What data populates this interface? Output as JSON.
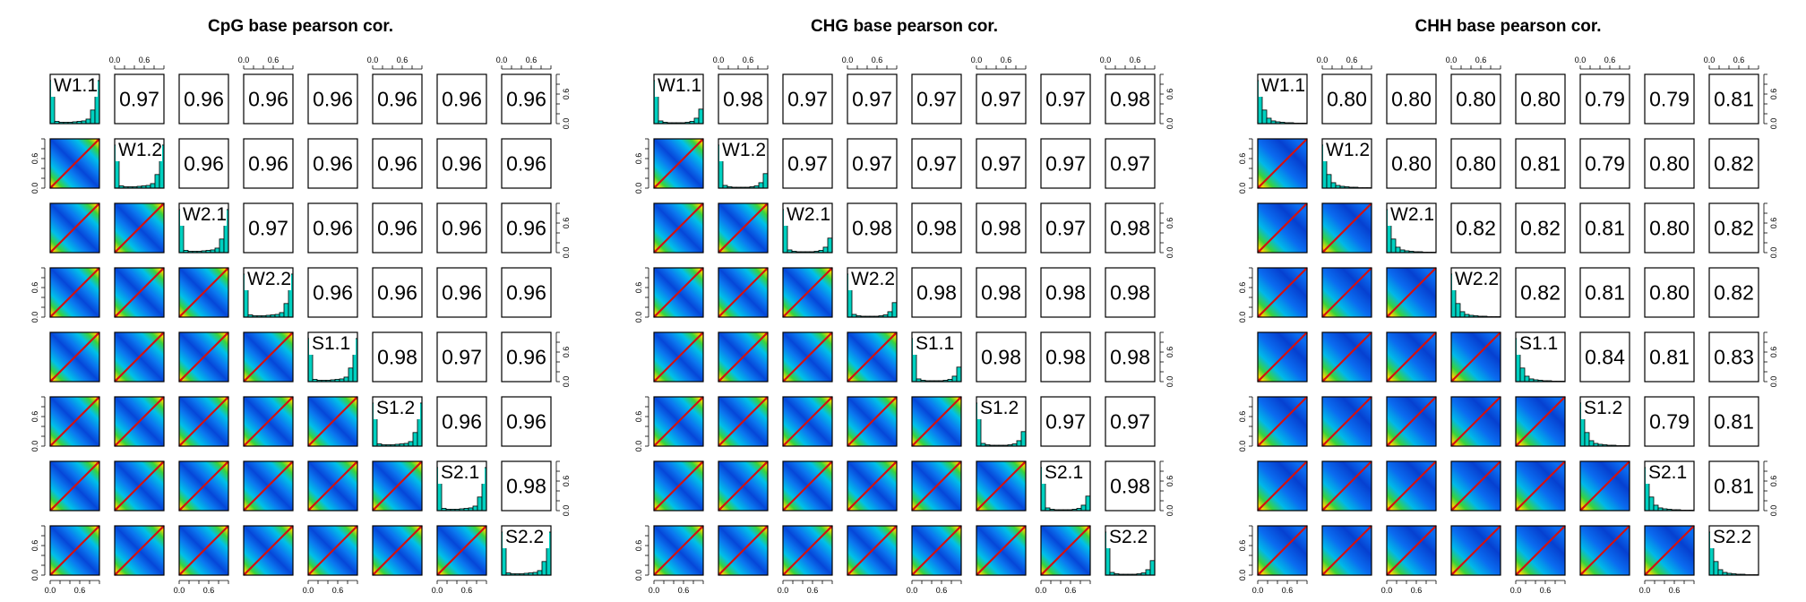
{
  "chart_data": [
    {
      "type": "scatter-matrix",
      "title": "CpG base pearson cor.",
      "variables": [
        "W1.1",
        "W1.2",
        "W2.1",
        "W2.2",
        "S1.1",
        "S1.2",
        "S2.1",
        "S2.2"
      ],
      "correlations": [
        [
          null,
          0.97,
          0.96,
          0.96,
          0.96,
          0.96,
          0.96,
          0.96
        ],
        [
          null,
          null,
          0.96,
          0.96,
          0.96,
          0.96,
          0.96,
          0.96
        ],
        [
          null,
          null,
          null,
          0.97,
          0.96,
          0.96,
          0.96,
          0.96
        ],
        [
          null,
          null,
          null,
          null,
          0.96,
          0.96,
          0.96,
          0.96
        ],
        [
          null,
          null,
          null,
          null,
          null,
          0.98,
          0.97,
          0.96
        ],
        [
          null,
          null,
          null,
          null,
          null,
          null,
          0.96,
          0.96
        ],
        [
          null,
          null,
          null,
          null,
          null,
          null,
          null,
          0.98
        ],
        [
          null,
          null,
          null,
          null,
          null,
          null,
          null,
          null
        ]
      ],
      "correlation_labels": [
        [
          null,
          "0.97",
          "0.96",
          "0.96",
          "0.96",
          "0.96",
          "0.96",
          "0.96"
        ],
        [
          null,
          null,
          "0.96",
          "0.96",
          "0.96",
          "0.96",
          "0.96",
          "0.96"
        ],
        [
          null,
          null,
          null,
          "0.97",
          "0.96",
          "0.96",
          "0.96",
          "0.96"
        ],
        [
          null,
          null,
          null,
          null,
          "0.96",
          "0.96",
          "0.96",
          "0.96"
        ],
        [
          null,
          null,
          null,
          null,
          null,
          "0.98",
          "0.97",
          "0.96"
        ],
        [
          null,
          null,
          null,
          null,
          null,
          null,
          "0.96",
          "0.96"
        ],
        [
          null,
          null,
          null,
          null,
          null,
          null,
          null,
          "0.98"
        ],
        [
          null,
          null,
          null,
          null,
          null,
          null,
          null,
          null
        ]
      ],
      "histogram": [
        0.95,
        0.05,
        0.03,
        0.03,
        0.03,
        0.04,
        0.05,
        0.06,
        0.1,
        0.3,
        0.95
      ],
      "tick_labels": [
        "0.0",
        "0.6"
      ],
      "axis_range": [
        0,
        1
      ]
    },
    {
      "type": "scatter-matrix",
      "title": "CHG base pearson cor.",
      "variables": [
        "W1.1",
        "W1.2",
        "W2.1",
        "W2.2",
        "S1.1",
        "S1.2",
        "S2.1",
        "S2.2"
      ],
      "correlations": [
        [
          null,
          0.98,
          0.97,
          0.97,
          0.97,
          0.97,
          0.97,
          0.98
        ],
        [
          null,
          null,
          0.97,
          0.97,
          0.97,
          0.97,
          0.97,
          0.97
        ],
        [
          null,
          null,
          null,
          0.98,
          0.98,
          0.98,
          0.97,
          0.98
        ],
        [
          null,
          null,
          null,
          null,
          0.98,
          0.98,
          0.98,
          0.98
        ],
        [
          null,
          null,
          null,
          null,
          null,
          0.98,
          0.98,
          0.98
        ],
        [
          null,
          null,
          null,
          null,
          null,
          null,
          0.97,
          0.97
        ],
        [
          null,
          null,
          null,
          null,
          null,
          null,
          null,
          0.98
        ],
        [
          null,
          null,
          null,
          null,
          null,
          null,
          null,
          null
        ]
      ],
      "correlation_labels": [
        [
          null,
          "0.98",
          "0.97",
          "0.97",
          "0.97",
          "0.97",
          "0.97",
          "0.98"
        ],
        [
          null,
          null,
          "0.97",
          "0.97",
          "0.97",
          "0.97",
          "0.97",
          "0.97"
        ],
        [
          null,
          null,
          null,
          "0.98",
          "0.98",
          "0.98",
          "0.97",
          "0.98"
        ],
        [
          null,
          null,
          null,
          null,
          "0.98",
          "0.98",
          "0.98",
          "0.98"
        ],
        [
          null,
          null,
          null,
          null,
          null,
          "0.98",
          "0.98",
          "0.98"
        ],
        [
          null,
          null,
          null,
          null,
          null,
          null,
          "0.97",
          "0.97"
        ],
        [
          null,
          null,
          null,
          null,
          null,
          null,
          null,
          "0.98"
        ],
        [
          null,
          null,
          null,
          null,
          null,
          null,
          null,
          null
        ]
      ],
      "histogram": [
        0.95,
        0.06,
        0.03,
        0.02,
        0.02,
        0.02,
        0.02,
        0.03,
        0.05,
        0.12,
        0.32
      ],
      "tick_labels": [
        "0.0",
        "0.6"
      ],
      "axis_range": [
        0,
        1
      ]
    },
    {
      "type": "scatter-matrix",
      "title": "CHH base pearson cor.",
      "variables": [
        "W1.1",
        "W1.2",
        "W2.1",
        "W2.2",
        "S1.1",
        "S1.2",
        "S2.1",
        "S2.2"
      ],
      "correlations": [
        [
          null,
          0.8,
          0.8,
          0.8,
          0.8,
          0.79,
          0.79,
          0.81
        ],
        [
          null,
          null,
          0.8,
          0.8,
          0.81,
          0.79,
          0.8,
          0.82
        ],
        [
          null,
          null,
          null,
          0.82,
          0.82,
          0.81,
          0.8,
          0.82
        ],
        [
          null,
          null,
          null,
          null,
          0.82,
          0.81,
          0.8,
          0.82
        ],
        [
          null,
          null,
          null,
          null,
          null,
          0.84,
          0.81,
          0.83
        ],
        [
          null,
          null,
          null,
          null,
          null,
          null,
          0.79,
          0.81
        ],
        [
          null,
          null,
          null,
          null,
          null,
          null,
          null,
          0.81
        ],
        [
          null,
          null,
          null,
          null,
          null,
          null,
          null,
          null
        ]
      ],
      "correlation_labels": [
        [
          null,
          "0.80",
          "0.80",
          "0.80",
          "0.80",
          "0.79",
          "0.79",
          "0.81"
        ],
        [
          null,
          null,
          "0.80",
          "0.80",
          "0.81",
          "0.79",
          "0.80",
          "0.82"
        ],
        [
          null,
          null,
          null,
          "0.82",
          "0.82",
          "0.81",
          "0.80",
          "0.82"
        ],
        [
          null,
          null,
          null,
          null,
          "0.82",
          "0.81",
          "0.80",
          "0.82"
        ],
        [
          null,
          null,
          null,
          null,
          null,
          "0.84",
          "0.81",
          "0.83"
        ],
        [
          null,
          null,
          null,
          null,
          null,
          null,
          "0.79",
          "0.81"
        ],
        [
          null,
          null,
          null,
          null,
          null,
          null,
          null,
          "0.81"
        ],
        [
          null,
          null,
          null,
          null,
          null,
          null,
          null,
          null
        ]
      ],
      "histogram": [
        0.95,
        0.3,
        0.12,
        0.06,
        0.04,
        0.03,
        0.02,
        0.02,
        0.01,
        0.01,
        0.01
      ],
      "tick_labels": [
        "0.0",
        "0.6"
      ],
      "axis_range": [
        0,
        1
      ]
    }
  ]
}
